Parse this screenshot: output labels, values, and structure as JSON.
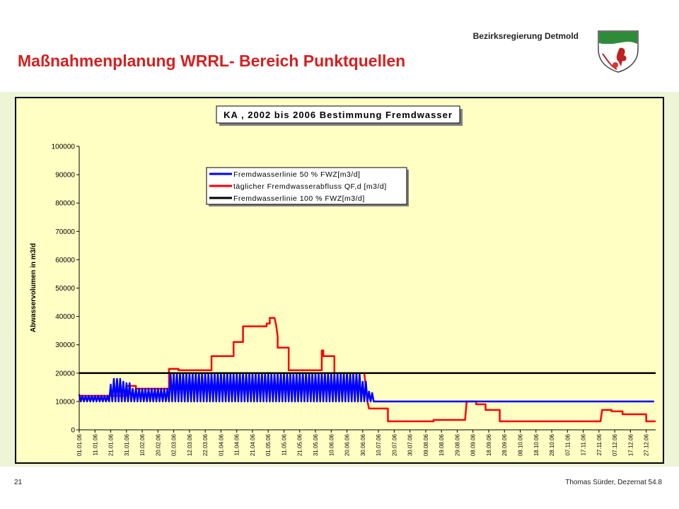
{
  "header": {
    "organization": "Bezirksregierung Detmold",
    "title": "Maßnahmenplanung WRRL- Bereich Punktquellen"
  },
  "footer": {
    "page": "21",
    "author": "Thomas Sürder, Dezernat 54.8"
  },
  "chart_data": {
    "type": "line",
    "title": "KA , 2002 bis 2006 Bestimmung Fremdwasser",
    "y_label": "Abwasservolumen in m3/d",
    "xlim": [
      0,
      366
    ],
    "xticks": [
      {
        "value": 0,
        "label": "01.01.06"
      },
      {
        "value": 10,
        "label": "11.01.06"
      },
      {
        "value": 20,
        "label": "21.01.06"
      },
      {
        "value": 30,
        "label": "31.01.06"
      },
      {
        "value": 40,
        "label": "10.02.06"
      },
      {
        "value": 50,
        "label": "20.02.06"
      },
      {
        "value": 60,
        "label": "02.03.06"
      },
      {
        "value": 70,
        "label": "12.03.06"
      },
      {
        "value": 80,
        "label": "22.03.06"
      },
      {
        "value": 90,
        "label": "01.04.06"
      },
      {
        "value": 100,
        "label": "11.04.06"
      },
      {
        "value": 110,
        "label": "21.04.06"
      },
      {
        "value": 120,
        "label": "01.05.06"
      },
      {
        "value": 130,
        "label": "11.05.06"
      },
      {
        "value": 140,
        "label": "21.05.06"
      },
      {
        "value": 150,
        "label": "31.05.06"
      },
      {
        "value": 160,
        "label": "10.06.06"
      },
      {
        "value": 170,
        "label": "20.06.06"
      },
      {
        "value": 180,
        "label": "30.06.06"
      },
      {
        "value": 190,
        "label": "10.07.06"
      },
      {
        "value": 200,
        "label": "20.07.06"
      },
      {
        "value": 210,
        "label": "30.07.06"
      },
      {
        "value": 220,
        "label": "09.08.06"
      },
      {
        "value": 230,
        "label": "19.08.06"
      },
      {
        "value": 240,
        "label": "29.08.06"
      },
      {
        "value": 250,
        "label": "08.09.06"
      },
      {
        "value": 260,
        "label": "18.09.06"
      },
      {
        "value": 270,
        "label": "28.09.06"
      },
      {
        "value": 280,
        "label": "08.10.06"
      },
      {
        "value": 290,
        "label": "18.10.06"
      },
      {
        "value": 300,
        "label": "28.10.06"
      },
      {
        "value": 310,
        "label": "07.11.06"
      },
      {
        "value": 320,
        "label": "17.11.06"
      },
      {
        "value": 330,
        "label": "27.11.06"
      },
      {
        "value": 340,
        "label": "07.12.06"
      },
      {
        "value": 350,
        "label": "17.12.06"
      },
      {
        "value": 360,
        "label": "27.12.06"
      }
    ],
    "ylim": [
      0,
      100000
    ],
    "yticks": [
      0,
      10000,
      20000,
      30000,
      40000,
      50000,
      60000,
      70000,
      80000,
      90000,
      100000
    ],
    "series": [
      {
        "name": "Fremdwasserlinie 50 % FWZ[m3/d]",
        "color": "#0000ff",
        "x": [
          0,
          1,
          2,
          3,
          4,
          5,
          6,
          7,
          8,
          9,
          10,
          11,
          12,
          13,
          14,
          15,
          16,
          17,
          18,
          19,
          20,
          21,
          22,
          23,
          24,
          25,
          26,
          27,
          28,
          29,
          30,
          31,
          32,
          33,
          34,
          35,
          36,
          37,
          38,
          39,
          40,
          41,
          42,
          43,
          44,
          45,
          46,
          47,
          48,
          49,
          50,
          51,
          52,
          53,
          54,
          55,
          56,
          57,
          58,
          59,
          60,
          61,
          62,
          63,
          64,
          65,
          66,
          67,
          68,
          69,
          70,
          71,
          72,
          73,
          74,
          75,
          76,
          77,
          78,
          79,
          80,
          81,
          82,
          83,
          84,
          85,
          86,
          87,
          88,
          89,
          90,
          91,
          92,
          93,
          94,
          95,
          96,
          97,
          98,
          99,
          100,
          101,
          102,
          103,
          104,
          105,
          106,
          107,
          108,
          109,
          110,
          111,
          112,
          113,
          114,
          115,
          116,
          117,
          118,
          119,
          120,
          121,
          122,
          123,
          124,
          125,
          126,
          127,
          128,
          129,
          130,
          131,
          132,
          133,
          134,
          135,
          136,
          137,
          138,
          139,
          140,
          141,
          142,
          143,
          144,
          145,
          146,
          147,
          148,
          149,
          150,
          151,
          152,
          153,
          154,
          155,
          156,
          157,
          158,
          159,
          160,
          161,
          162,
          163,
          164,
          165,
          166,
          167,
          168,
          169,
          170,
          171,
          172,
          173,
          174,
          175,
          176,
          177,
          178,
          179,
          180,
          181,
          182,
          183,
          184,
          185,
          186,
          187,
          188,
          365
        ],
        "values": [
          12500,
          10000,
          12000,
          10000,
          12000,
          10000,
          12000,
          10000,
          12000,
          10000,
          12000,
          10000,
          12000,
          10000,
          12000,
          10000,
          12000,
          10000,
          12000,
          10000,
          16000,
          10000,
          18000,
          10000,
          18000,
          10000,
          18000,
          10000,
          17000,
          10000,
          16500,
          10000,
          16500,
          10000,
          14500,
          10000,
          14500,
          10000,
          14500,
          10000,
          14500,
          10000,
          14500,
          10000,
          14500,
          10000,
          14500,
          10000,
          14500,
          10000,
          14500,
          10000,
          14500,
          10000,
          14500,
          10000,
          14500,
          10000,
          20000,
          10000,
          20000,
          10000,
          20000,
          10000,
          20000,
          10000,
          20000,
          10000,
          20000,
          10000,
          20000,
          10000,
          20000,
          10000,
          20000,
          10000,
          20000,
          10000,
          20000,
          10000,
          20000,
          10000,
          20000,
          10000,
          20000,
          10000,
          20000,
          10000,
          20000,
          10000,
          20000,
          10000,
          20000,
          10000,
          20000,
          10000,
          20000,
          10000,
          20000,
          10000,
          20000,
          10000,
          20000,
          10000,
          20000,
          10000,
          20000,
          10000,
          20000,
          10000,
          20000,
          10000,
          20000,
          10000,
          20000,
          10000,
          20000,
          10000,
          20000,
          10000,
          20000,
          10000,
          20000,
          10000,
          20000,
          10000,
          20000,
          10000,
          20000,
          10000,
          20000,
          10000,
          20000,
          10000,
          20000,
          10000,
          20000,
          10000,
          20000,
          10000,
          20000,
          10000,
          20000,
          10000,
          20000,
          10000,
          20000,
          10000,
          20000,
          10000,
          20000,
          10000,
          20000,
          10000,
          20000,
          10000,
          20000,
          10000,
          20000,
          10000,
          20000,
          10000,
          20000,
          10000,
          20000,
          10000,
          20000,
          10000,
          20000,
          10000,
          20000,
          10000,
          20000,
          10000,
          20000,
          10000,
          20000,
          10000,
          20000,
          10000,
          17000,
          10000,
          17000,
          10000,
          13500,
          10000,
          13000,
          10000,
          10000,
          10000
        ]
      },
      {
        "name": "täglicher Fremdwasserabfluss QF,d [m3/d]",
        "color": "#ff0000",
        "x": [
          0,
          30,
          30,
          36,
          36,
          57,
          57,
          63,
          63,
          84,
          84,
          98,
          98,
          104,
          104,
          119,
          119,
          121,
          121,
          124,
          125,
          126,
          126,
          133,
          133,
          154,
          154,
          155,
          155,
          162,
          162,
          181,
          183,
          184,
          196,
          196,
          225,
          225,
          245,
          246,
          252,
          252,
          258,
          258,
          267,
          267,
          331,
          332,
          338,
          338,
          345,
          345,
          360,
          360,
          366
        ],
        "values": [
          12000,
          12000,
          15500,
          15500,
          14500,
          14500,
          21500,
          21500,
          21000,
          21000,
          26000,
          26000,
          31000,
          31000,
          36500,
          36500,
          37500,
          37500,
          39500,
          39500,
          37000,
          33000,
          29000,
          29000,
          21000,
          21000,
          28000,
          28000,
          26000,
          26000,
          20000,
          20000,
          10000,
          7500,
          7500,
          3000,
          3000,
          3500,
          3500,
          10000,
          10000,
          9000,
          9000,
          7000,
          7000,
          3000,
          3000,
          7000,
          7000,
          6500,
          6500,
          5500,
          5500,
          3000,
          3000
        ]
      },
      {
        "name": "Fremdwasserlinie 100 % FWZ[m3/d]",
        "color": "#000000",
        "x": [
          0,
          366
        ],
        "values": [
          20000,
          20000
        ]
      }
    ]
  }
}
